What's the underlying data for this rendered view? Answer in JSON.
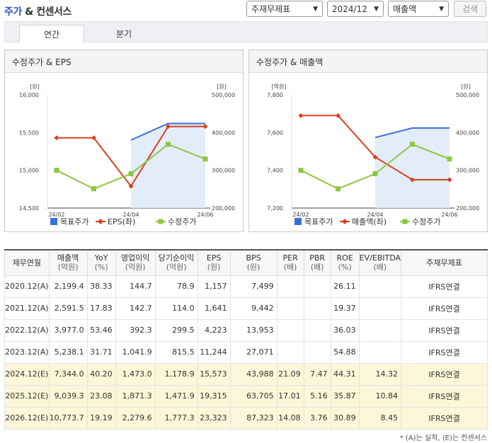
{
  "header": {
    "title_main": "주가",
    "title_sep": " & ",
    "title_sub": "컨센서스",
    "filter_label": "주재무제표",
    "period": "2024/12",
    "metric": "매출액",
    "search_label": "검색"
  },
  "tabs": [
    {
      "label": "연간",
      "active": true
    },
    {
      "label": "분기",
      "active": false
    }
  ],
  "chart_data": [
    {
      "type": "line",
      "title": "수정주가 & EPS",
      "categories": [
        "24/02",
        "24/03",
        "24/04",
        "24/05",
        "24/06"
      ],
      "left_unit": "[원]",
      "right_unit": "[원]",
      "left_ticks": [
        "16,000",
        "15,500",
        "15,000",
        "14,500"
      ],
      "right_ticks": [
        "500,000",
        "400,000",
        "300,000",
        "200,000"
      ],
      "left_range": [
        14500,
        16000
      ],
      "right_range": [
        200000,
        500000
      ],
      "x_labels": [
        "24/02",
        "24/04",
        "24/06"
      ],
      "target_price": {
        "name": "목표주가",
        "x": [
          2,
          3,
          4
        ],
        "values": [
          15400,
          15620,
          15620
        ],
        "axis": "left",
        "color": "#3a6fd8"
      },
      "series": [
        {
          "name": "EPS(좌)",
          "axis": "left",
          "color": "#d9411e",
          "values": [
            15430,
            15430,
            14790,
            15580,
            15580
          ]
        },
        {
          "name": "수정주가",
          "axis": "right",
          "color": "#8cc63f",
          "values": [
            300000,
            251000,
            291000,
            369000,
            330000
          ]
        }
      ],
      "legend": [
        "목표주가",
        "EPS(좌)",
        "수정주가"
      ]
    },
    {
      "type": "line",
      "title": "수정주가 & 매출액",
      "categories": [
        "24/02",
        "24/03",
        "24/04",
        "24/05",
        "24/06"
      ],
      "left_unit": "[억원]",
      "right_unit": "[원]",
      "left_ticks": [
        "7,800",
        "7,600",
        "7,400",
        "7,200"
      ],
      "right_ticks": [
        "500,000",
        "400,000",
        "300,000",
        "200,000"
      ],
      "left_range": [
        7200,
        7800
      ],
      "right_range": [
        200000,
        500000
      ],
      "x_labels": [
        "24/02",
        "24/04",
        "24/06"
      ],
      "target_price": {
        "name": "목표주가",
        "x": [
          2,
          3,
          4
        ],
        "values": [
          387000,
          412000,
          412000
        ],
        "axis": "right",
        "color": "#3a6fd8"
      },
      "series": [
        {
          "name": "매출액(좌)",
          "axis": "left",
          "color": "#d9411e",
          "values": [
            7690,
            7690,
            7470,
            7350,
            7350
          ]
        },
        {
          "name": "수정주가",
          "axis": "right",
          "color": "#8cc63f",
          "values": [
            300000,
            251000,
            291000,
            369000,
            330000
          ]
        }
      ],
      "legend": [
        "목표주가",
        "매출액(좌)",
        "수정주가"
      ]
    }
  ],
  "table": {
    "columns": [
      {
        "label": "재무연월",
        "sub": ""
      },
      {
        "label": "매출액",
        "sub": "(억원)"
      },
      {
        "label": "YoY",
        "sub": "(%)"
      },
      {
        "label": "영업이익",
        "sub": "(억원)"
      },
      {
        "label": "당기순이익",
        "sub": "(억원)"
      },
      {
        "label": "EPS",
        "sub": "(원)"
      },
      {
        "label": "BPS",
        "sub": "(원)"
      },
      {
        "label": "PER",
        "sub": "(배)"
      },
      {
        "label": "PBR",
        "sub": "(배)"
      },
      {
        "label": "ROE",
        "sub": "(%)"
      },
      {
        "label": "EV/EBITDA",
        "sub": "(배)"
      },
      {
        "label": "주재무제표",
        "sub": ""
      }
    ],
    "rows": [
      {
        "est": false,
        "cells": [
          "2020.12(A)",
          "2,199.4",
          "38.33",
          "144.7",
          "78.9",
          "1,157",
          "7,499",
          "",
          "",
          "26.11",
          "",
          "IFRS연결"
        ]
      },
      {
        "est": false,
        "cells": [
          "2021.12(A)",
          "2,591.5",
          "17.83",
          "142.7",
          "114.0",
          "1,641",
          "9,442",
          "",
          "",
          "19.37",
          "",
          "IFRS연결"
        ]
      },
      {
        "est": false,
        "cells": [
          "2022.12(A)",
          "3,977.0",
          "53.46",
          "392.3",
          "299.5",
          "4,223",
          "13,953",
          "",
          "",
          "36.03",
          "",
          "IFRS연결"
        ]
      },
      {
        "est": false,
        "cells": [
          "2023.12(A)",
          "5,238.1",
          "31.71",
          "1,041.9",
          "815.5",
          "11,244",
          "27,071",
          "",
          "",
          "54.88",
          "",
          "IFRS연결"
        ]
      },
      {
        "est": true,
        "cells": [
          "2024.12(E)",
          "7,344.0",
          "40.20",
          "1,473.0",
          "1,178.9",
          "15,573",
          "43,988",
          "21.09",
          "7.47",
          "44.31",
          "14.32",
          "IFRS연결"
        ]
      },
      {
        "est": true,
        "cells": [
          "2025.12(E)",
          "9,039.3",
          "23.08",
          "1,871.3",
          "1,471.9",
          "19,315",
          "63,705",
          "17.01",
          "5.16",
          "35.87",
          "10.84",
          "IFRS연결"
        ]
      },
      {
        "est": true,
        "cells": [
          "2026.12(E)",
          "10,773.7",
          "19.19",
          "2,279.6",
          "1,777.3",
          "23,323",
          "87,323",
          "14.08",
          "3.76",
          "30.89",
          "8.45",
          "IFRS연결"
        ]
      }
    ]
  },
  "footnote": "* (A)는 실적, (E)는 컨센서스",
  "colors": {
    "estimate_row": "#fdf6d8",
    "target": "#3a6fd8",
    "series_red": "#d9411e",
    "series_green": "#8cc63f"
  }
}
